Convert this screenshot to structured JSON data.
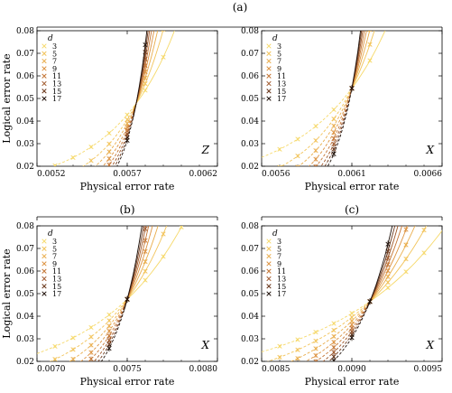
{
  "figure": {
    "group_labels": [
      "(a)",
      "(b)",
      "(c)"
    ],
    "legend_title": "d",
    "distances": [
      3,
      5,
      7,
      9,
      11,
      13,
      15,
      17
    ],
    "distance_labels": [
      "3",
      "5",
      "7",
      "9",
      "11",
      "13",
      "15",
      "17"
    ],
    "colors": [
      "#f6d96a",
      "#f2c45b",
      "#e9ad4c",
      "#dc9240",
      "#c47534",
      "#9e5628",
      "#6a371b",
      "#1e1009"
    ]
  },
  "chart_data": [
    {
      "id": "a-Z",
      "type": "line",
      "panel_label": "Z",
      "xlabel": "Physical error rate",
      "ylabel": "Logical error rate",
      "xlim": [
        0.0052,
        0.0062
      ],
      "ylim": [
        0.02,
        0.08
      ],
      "xticks": [
        0.0052,
        0.0057,
        0.0062
      ],
      "xticklabels": [
        "0.0052",
        "0.0057",
        "0.0062"
      ],
      "yticks": [
        0.02,
        0.03,
        0.04,
        0.05,
        0.06,
        0.07,
        0.08
      ],
      "yticklabels": [
        "0.02",
        "0.03",
        "0.04",
        "0.05",
        "0.06",
        "0.07",
        "0.08"
      ],
      "threshold": {
        "x": 0.00575,
        "y": 0.0478
      },
      "slopes": [
        13,
        19,
        24,
        29,
        34,
        39,
        44,
        49
      ],
      "curvature": 2.0,
      "x": [
        0.0053,
        0.0054,
        0.0055,
        0.0056,
        0.0057,
        0.0058,
        0.0059,
        0.006,
        0.0061
      ]
    },
    {
      "id": "a-X",
      "type": "line",
      "panel_label": "X",
      "xlabel": "Physical error rate",
      "ylabel": "",
      "xlim": [
        0.0056,
        0.0066
      ],
      "ylim": [
        0.02,
        0.08
      ],
      "xticks": [
        0.0056,
        0.0061,
        0.0066
      ],
      "xticklabels": [
        "0.0056",
        "0.0061",
        "0.0066"
      ],
      "yticks": [
        0.02,
        0.03,
        0.04,
        0.05,
        0.06,
        0.07,
        0.08
      ],
      "yticklabels": [
        "0.02",
        "0.03",
        "0.04",
        "0.05",
        "0.06",
        "0.07",
        "0.08"
      ],
      "threshold": {
        "x": 0.0061,
        "y": 0.0545
      },
      "slopes": [
        12,
        18,
        23,
        28,
        33,
        38,
        43,
        48
      ],
      "curvature": 2.0,
      "x": [
        0.0057,
        0.0058,
        0.0059,
        0.006,
        0.0061,
        0.0062,
        0.0063,
        0.0064,
        0.0065
      ]
    },
    {
      "id": "b-X",
      "type": "line",
      "panel_label": "X",
      "xlabel": "Physical error rate",
      "ylabel": "Logical error rate",
      "xlim": [
        0.007,
        0.008
      ],
      "ylim": [
        0.02,
        0.08
      ],
      "xticks": [
        0.007,
        0.0075,
        0.008
      ],
      "xticklabels": [
        "0.0070",
        "0.0075",
        "0.0080"
      ],
      "yticks": [
        0.02,
        0.03,
        0.04,
        0.05,
        0.06,
        0.07,
        0.08
      ],
      "yticklabels": [
        "0.02",
        "0.03",
        "0.04",
        "0.05",
        "0.06",
        "0.07",
        "0.08"
      ],
      "threshold": {
        "x": 0.0075,
        "y": 0.0475
      },
      "slopes": [
        12,
        17,
        22,
        27,
        32,
        37,
        42,
        47
      ],
      "curvature": 1.8,
      "x": [
        0.0071,
        0.0072,
        0.0073,
        0.0074,
        0.0075,
        0.0076,
        0.0077,
        0.0078,
        0.0079
      ]
    },
    {
      "id": "c-X",
      "type": "line",
      "panel_label": "X",
      "xlabel": "Physical error rate",
      "ylabel": "",
      "xlim": [
        0.0085,
        0.0095
      ],
      "ylim": [
        0.02,
        0.08
      ],
      "xticks": [
        0.0085,
        0.009,
        0.0095
      ],
      "xticklabels": [
        "0.0085",
        "0.0090",
        "0.0095"
      ],
      "yticks": [
        0.02,
        0.03,
        0.04,
        0.05,
        0.06,
        0.07,
        0.08
      ],
      "yticklabels": [
        "0.02",
        "0.03",
        "0.04",
        "0.05",
        "0.06",
        "0.07",
        "0.08"
      ],
      "threshold": {
        "x": 0.0091,
        "y": 0.0465
      },
      "slopes": [
        11,
        15,
        19,
        23,
        27,
        31,
        35,
        39
      ],
      "curvature": 1.5,
      "x": [
        0.0086,
        0.0087,
        0.0088,
        0.0089,
        0.009,
        0.0091,
        0.0092,
        0.0093,
        0.0094
      ]
    }
  ]
}
